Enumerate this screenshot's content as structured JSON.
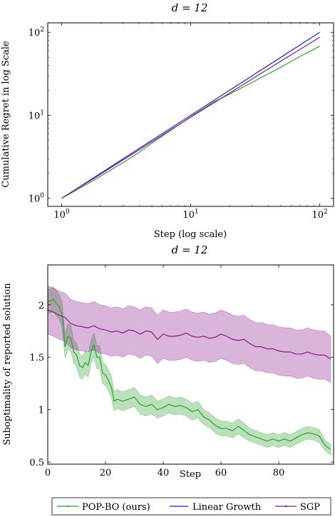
{
  "legend": {
    "position": "bottom-center",
    "entries": [
      {
        "label": "POP-BO (ours)",
        "color": "#2ca02c"
      },
      {
        "label": "Linear Growth",
        "color": "#1f1fd6"
      },
      {
        "label": "SGP",
        "color": "#8b1a8b"
      }
    ]
  },
  "chart_data": [
    {
      "type": "line",
      "title": "d = 12",
      "xlabel": "Step (log scale)",
      "ylabel": "Cumulative Regret in log Scale",
      "xscale": "log",
      "yscale": "log",
      "xlim": [
        0.78,
        128
      ],
      "ylim": [
        0.8,
        130
      ],
      "xticks": [
        {
          "v": 1,
          "label": "10^0"
        },
        {
          "v": 10,
          "label": "10^1"
        },
        {
          "v": 100,
          "label": "10^2"
        }
      ],
      "yticks": [
        {
          "v": 1,
          "label": "10^0"
        },
        {
          "v": 10,
          "label": "10^1"
        },
        {
          "v": 100,
          "label": "10^2"
        }
      ],
      "grid": false,
      "series": [
        {
          "name": "POP-BO (ours)",
          "color": "#2ca02c",
          "x": [
            1,
            1.5,
            2,
            3,
            4,
            5,
            7,
            10,
            15,
            20,
            30,
            50,
            70,
            100
          ],
          "y": [
            1,
            1.42,
            1.85,
            2.7,
            3.6,
            4.6,
            6.6,
            9.6,
            14.4,
            18.0,
            25.0,
            38.0,
            51.0,
            68.0
          ]
        },
        {
          "name": "Linear Growth",
          "color": "#1f1fd6",
          "x": [
            1,
            100
          ],
          "y": [
            1,
            100
          ]
        },
        {
          "name": "SGP",
          "color": "#8b1a8b",
          "x": [
            1,
            2,
            3,
            5,
            7,
            10,
            15,
            20,
            30,
            50,
            70,
            100
          ],
          "y": [
            1,
            1.95,
            2.9,
            4.8,
            6.7,
            9.5,
            14.0,
            18.5,
            27.5,
            45.0,
            62.0,
            87.0
          ]
        }
      ]
    },
    {
      "type": "line",
      "title": "d = 12",
      "xlabel": "Step",
      "ylabel": "Suboptimality of reported solution",
      "xlim": [
        0,
        99
      ],
      "ylim": [
        0.48,
        2.38
      ],
      "xticks": [
        {
          "v": 0,
          "label": "0"
        },
        {
          "v": 20,
          "label": "20"
        },
        {
          "v": 40,
          "label": "40"
        },
        {
          "v": 60,
          "label": "60"
        },
        {
          "v": 80,
          "label": "80"
        }
      ],
      "yticks": [
        {
          "v": 0.5,
          "label": "0.5"
        },
        {
          "v": 1,
          "label": "1"
        },
        {
          "v": 1.5,
          "label": "1.5"
        },
        {
          "v": 2,
          "label": "2"
        }
      ],
      "grid": false,
      "series": [
        {
          "name": "POP-BO (ours)",
          "color": "#2ca02c",
          "x": [
            0,
            2,
            4,
            5,
            6,
            7,
            8,
            9,
            10,
            11,
            12,
            13,
            14,
            15,
            16,
            17,
            18,
            19,
            20,
            21,
            22,
            23,
            24,
            26,
            28,
            30,
            32,
            34,
            36,
            38,
            40,
            42,
            44,
            46,
            48,
            50,
            52,
            54,
            56,
            58,
            60,
            62,
            64,
            66,
            68,
            70,
            72,
            74,
            76,
            78,
            80,
            82,
            84,
            86,
            88,
            90,
            92,
            94,
            96,
            98
          ],
          "y": [
            2.03,
            2.05,
            1.98,
            1.9,
            1.6,
            1.7,
            1.68,
            1.55,
            1.52,
            1.42,
            1.4,
            1.45,
            1.42,
            1.55,
            1.62,
            1.5,
            1.5,
            1.35,
            1.33,
            1.28,
            1.22,
            1.08,
            1.1,
            1.08,
            1.1,
            1.12,
            1.05,
            1.03,
            1.05,
            1.0,
            1.02,
            1.05,
            1.03,
            1.04,
            1.02,
            0.98,
            1.0,
            0.93,
            0.9,
            0.85,
            0.82,
            0.82,
            0.8,
            0.84,
            0.8,
            0.76,
            0.74,
            0.72,
            0.7,
            0.72,
            0.7,
            0.72,
            0.7,
            0.73,
            0.76,
            0.78,
            0.77,
            0.75,
            0.66,
            0.62
          ],
          "y_lower": [
            1.92,
            1.93,
            1.86,
            1.78,
            1.49,
            1.58,
            1.56,
            1.44,
            1.41,
            1.31,
            1.29,
            1.34,
            1.31,
            1.44,
            1.51,
            1.39,
            1.39,
            1.25,
            1.23,
            1.18,
            1.12,
            0.99,
            1.01,
            0.99,
            1.01,
            1.03,
            0.96,
            0.94,
            0.96,
            0.92,
            0.94,
            0.97,
            0.95,
            0.96,
            0.94,
            0.9,
            0.92,
            0.86,
            0.83,
            0.78,
            0.75,
            0.75,
            0.73,
            0.77,
            0.73,
            0.7,
            0.68,
            0.66,
            0.64,
            0.66,
            0.64,
            0.66,
            0.64,
            0.67,
            0.7,
            0.72,
            0.71,
            0.69,
            0.61,
            0.57
          ],
          "y_upper": [
            2.14,
            2.17,
            2.1,
            2.02,
            1.71,
            1.82,
            1.8,
            1.66,
            1.63,
            1.53,
            1.51,
            1.56,
            1.53,
            1.66,
            1.73,
            1.61,
            1.61,
            1.45,
            1.43,
            1.38,
            1.32,
            1.17,
            1.19,
            1.17,
            1.19,
            1.21,
            1.14,
            1.12,
            1.14,
            1.08,
            1.1,
            1.13,
            1.11,
            1.12,
            1.1,
            1.06,
            1.08,
            1.0,
            0.97,
            0.92,
            0.89,
            0.89,
            0.87,
            0.91,
            0.87,
            0.82,
            0.8,
            0.78,
            0.76,
            0.78,
            0.76,
            0.78,
            0.76,
            0.79,
            0.82,
            0.84,
            0.83,
            0.81,
            0.71,
            0.67
          ]
        },
        {
          "name": "SGP",
          "color": "#8b1a8b",
          "x": [
            0,
            2,
            4,
            6,
            8,
            10,
            12,
            14,
            16,
            18,
            20,
            22,
            24,
            26,
            28,
            30,
            32,
            34,
            36,
            38,
            40,
            42,
            44,
            46,
            48,
            50,
            52,
            54,
            56,
            58,
            60,
            62,
            64,
            66,
            68,
            70,
            72,
            74,
            76,
            78,
            80,
            82,
            84,
            86,
            88,
            90,
            92,
            94,
            96,
            98
          ],
          "y": [
            1.95,
            1.93,
            1.9,
            1.88,
            1.82,
            1.8,
            1.79,
            1.78,
            1.8,
            1.77,
            1.76,
            1.74,
            1.75,
            1.73,
            1.76,
            1.75,
            1.72,
            1.75,
            1.74,
            1.67,
            1.72,
            1.7,
            1.7,
            1.71,
            1.73,
            1.7,
            1.69,
            1.7,
            1.68,
            1.69,
            1.72,
            1.7,
            1.67,
            1.66,
            1.67,
            1.63,
            1.6,
            1.6,
            1.58,
            1.58,
            1.56,
            1.55,
            1.55,
            1.53,
            1.53,
            1.55,
            1.53,
            1.52,
            1.52,
            1.48
          ],
          "y_lower": [
            1.72,
            1.7,
            1.67,
            1.65,
            1.59,
            1.57,
            1.56,
            1.55,
            1.57,
            1.54,
            1.53,
            1.51,
            1.52,
            1.5,
            1.53,
            1.52,
            1.49,
            1.52,
            1.51,
            1.44,
            1.49,
            1.47,
            1.47,
            1.48,
            1.5,
            1.47,
            1.46,
            1.47,
            1.45,
            1.46,
            1.49,
            1.47,
            1.44,
            1.43,
            1.44,
            1.4,
            1.37,
            1.37,
            1.35,
            1.35,
            1.33,
            1.32,
            1.32,
            1.3,
            1.3,
            1.32,
            1.3,
            1.29,
            1.29,
            1.26
          ],
          "y_upper": [
            2.18,
            2.16,
            2.13,
            2.11,
            2.05,
            2.03,
            2.02,
            2.01,
            2.03,
            2.0,
            1.99,
            1.97,
            1.98,
            1.96,
            1.99,
            1.98,
            1.95,
            1.98,
            1.97,
            1.9,
            1.95,
            1.93,
            1.93,
            1.94,
            1.96,
            1.93,
            1.92,
            1.93,
            1.91,
            1.92,
            1.95,
            1.93,
            1.9,
            1.89,
            1.9,
            1.86,
            1.83,
            1.83,
            1.81,
            1.81,
            1.79,
            1.78,
            1.78,
            1.76,
            1.76,
            1.78,
            1.76,
            1.75,
            1.75,
            1.7
          ]
        }
      ]
    }
  ]
}
